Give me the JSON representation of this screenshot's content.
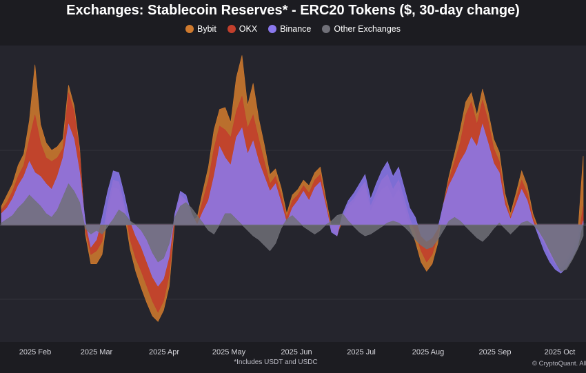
{
  "chart_data": {
    "type": "area",
    "title": "Exchanges: Stablecoin Reserves* - ERC20 Tokens ($, 30-day change)",
    "x_tick_labels": [
      "2025 Feb",
      "2025 Mar",
      "2025 Apr",
      "2025 May",
      "2025 Jun",
      "2025 Jul",
      "2025 Aug",
      "2025 Sep",
      "2025 Oct"
    ],
    "footnote": "*Includes USDT and USDC",
    "credit": "© CryptoQuant. All rights reserved",
    "legend": [
      "Bybit",
      "OKX",
      "Binance",
      "Other Exchanges"
    ],
    "series": [
      {
        "name": "Other Exchanges",
        "color": "#707078",
        "values": [
          0.1,
          0.3,
          0.5,
          0.9,
          1.2,
          1.6,
          1.3,
          1.0,
          0.6,
          0.4,
          0.8,
          1.5,
          2.2,
          1.8,
          1.2,
          -0.2,
          -0.5,
          -0.3,
          -0.5,
          -0.1,
          0.3,
          0.8,
          0.6,
          0.2,
          0.0,
          -0.3,
          -0.8,
          -1.5,
          -2.0,
          -1.8,
          -1.0,
          0.4,
          1.0,
          1.2,
          0.9,
          0.5,
          0.1,
          -0.3,
          -0.5,
          0.0,
          0.6,
          0.6,
          0.3,
          0.0,
          -0.3,
          -0.6,
          -0.8,
          -1.1,
          -1.4,
          -1.0,
          -0.2,
          0.3,
          0.5,
          0.2,
          -0.1,
          -0.3,
          -0.5,
          -0.3,
          0.0,
          0.2,
          0.5,
          0.6,
          0.2,
          -0.1,
          -0.4,
          -0.6,
          -0.5,
          -0.3,
          -0.1,
          0.1,
          0.2,
          0.1,
          -0.1,
          -0.4,
          -0.8,
          -1.1,
          -1.3,
          -1.2,
          -0.8,
          -0.3,
          0.2,
          0.4,
          0.2,
          -0.1,
          -0.4,
          -0.7,
          -0.9,
          -0.6,
          -0.2,
          0.1,
          -0.2,
          -0.5,
          -0.2,
          0.1,
          0.2,
          0.0,
          -0.3,
          -0.8,
          -1.4,
          -2.0,
          -2.5,
          -2.4,
          -1.9,
          -1.3,
          -0.6
        ]
      },
      {
        "name": "Binance",
        "color": "#8a78ec",
        "values": [
          0.6,
          0.9,
          1.4,
          2.1,
          2.6,
          3.4,
          2.8,
          2.6,
          2.2,
          1.9,
          2.6,
          3.6,
          5.4,
          4.6,
          2.8,
          0.2,
          -1.2,
          -0.8,
          0.4,
          1.8,
          2.9,
          2.8,
          1.6,
          0.2,
          -0.6,
          -1.2,
          -2.0,
          -2.8,
          -3.3,
          -2.9,
          -1.7,
          0.6,
          1.8,
          1.6,
          0.6,
          0.0,
          0.7,
          1.3,
          2.6,
          4.2,
          3.6,
          3.2,
          4.7,
          5.2,
          3.8,
          4.5,
          3.4,
          2.6,
          1.8,
          2.2,
          1.2,
          0.1,
          0.9,
          1.3,
          1.8,
          1.3,
          2.0,
          2.3,
          1.0,
          -0.4,
          -0.6,
          0.6,
          1.3,
          1.7,
          2.2,
          2.7,
          1.4,
          2.2,
          2.9,
          3.4,
          2.6,
          3.1,
          2.0,
          0.9,
          0.4,
          -0.6,
          -0.9,
          -0.7,
          -0.2,
          1.1,
          2.1,
          2.7,
          3.4,
          3.9,
          4.7,
          4.2,
          5.4,
          4.4,
          3.3,
          2.8,
          1.1,
          0.3,
          1.1,
          1.9,
          1.3,
          0.2,
          -0.6,
          -1.4,
          -2.0,
          -2.4,
          -2.6,
          -2.3,
          -1.8,
          -1.2,
          0.2
        ]
      },
      {
        "name": "OKX",
        "color": "#c23f2c",
        "values": [
          0.8,
          1.2,
          1.8,
          2.6,
          3.2,
          4.6,
          5.9,
          4.4,
          3.6,
          3.4,
          3.6,
          4.1,
          7.1,
          6.1,
          3.9,
          -0.3,
          -1.6,
          -1.4,
          -0.9,
          1.1,
          2.4,
          2.3,
          1.0,
          -0.8,
          -1.8,
          -2.5,
          -3.3,
          -4.1,
          -4.7,
          -4.1,
          -2.7,
          0.4,
          1.6,
          1.3,
          0.4,
          0.2,
          1.3,
          2.4,
          4.1,
          5.3,
          5.1,
          4.7,
          6.1,
          6.9,
          5.2,
          5.9,
          4.6,
          3.4,
          2.2,
          2.6,
          1.6,
          0.4,
          1.3,
          1.6,
          2.1,
          1.7,
          2.4,
          2.7,
          1.2,
          -0.3,
          -0.6,
          0.4,
          1.1,
          1.4,
          1.9,
          2.3,
          1.0,
          1.7,
          2.4,
          2.7,
          1.9,
          2.4,
          1.4,
          0.3,
          -0.4,
          -1.4,
          -2.0,
          -1.6,
          -0.6,
          1.1,
          2.4,
          3.4,
          4.4,
          5.9,
          6.6,
          5.4,
          6.7,
          5.6,
          4.1,
          3.4,
          1.4,
          0.4,
          1.4,
          2.4,
          1.7,
          0.4,
          -0.4,
          -1.0,
          -1.6,
          -2.1,
          -2.3,
          -2.0,
          -1.5,
          -0.9,
          1.0
        ]
      },
      {
        "name": "Bybit",
        "color": "#cf7a2e",
        "values": [
          1.0,
          1.6,
          2.2,
          3.2,
          3.8,
          5.6,
          8.6,
          5.4,
          4.4,
          4.0,
          4.2,
          4.6,
          7.5,
          6.4,
          4.1,
          -0.5,
          -2.1,
          -2.1,
          -1.6,
          0.6,
          2.0,
          1.9,
          0.6,
          -1.3,
          -2.5,
          -3.4,
          -4.2,
          -4.9,
          -5.2,
          -4.6,
          -3.3,
          0.2,
          1.4,
          1.1,
          0.2,
          0.4,
          1.8,
          3.1,
          5.1,
          6.2,
          6.3,
          5.5,
          7.9,
          9.1,
          6.4,
          7.6,
          5.7,
          4.3,
          2.7,
          3.0,
          2.0,
          0.6,
          1.6,
          1.9,
          2.4,
          2.1,
          2.8,
          3.1,
          1.4,
          -0.1,
          -0.5,
          0.2,
          0.9,
          1.2,
          1.7,
          2.0,
          0.7,
          1.4,
          1.9,
          2.1,
          1.4,
          1.9,
          1.0,
          -0.1,
          -0.9,
          -2.0,
          -2.5,
          -2.1,
          -1.0,
          1.1,
          2.6,
          3.8,
          5.1,
          6.6,
          7.1,
          5.9,
          7.3,
          6.1,
          4.6,
          3.9,
          1.7,
          0.6,
          1.7,
          2.9,
          2.1,
          0.6,
          -0.2,
          -0.8,
          -1.3,
          -1.8,
          -2.0,
          -1.8,
          -1.3,
          -0.6,
          3.7
        ]
      }
    ]
  }
}
